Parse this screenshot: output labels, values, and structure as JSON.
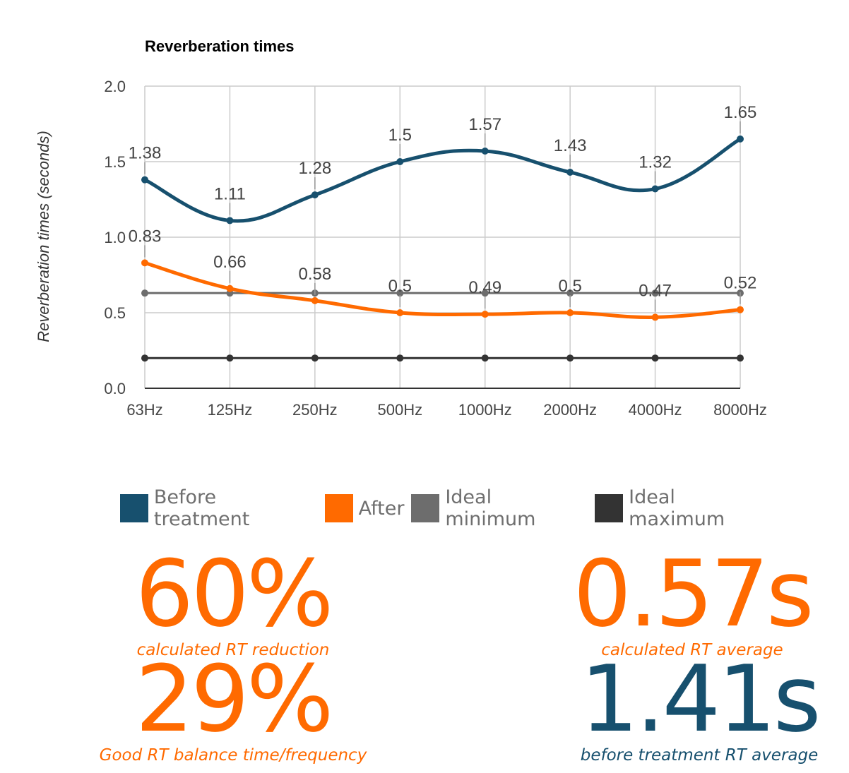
{
  "colors": {
    "before": "#17506e",
    "after": "#ff6a00",
    "ideal_min": "#6d6d6d",
    "ideal_max": "#333333",
    "grid": "#cccccc",
    "axis_text": "#444444"
  },
  "chart_data": {
    "type": "line",
    "title": "Reverberation times",
    "ylabel": "Reverberation times (seconds)",
    "xlabel": "",
    "ylim": [
      0,
      2
    ],
    "yticks": [
      "0.0",
      "0.5",
      "1.0",
      "1.5",
      "2.0"
    ],
    "grid": true,
    "smooth": true,
    "legend_position": "bottom",
    "categories": [
      "63Hz",
      "125Hz",
      "250Hz",
      "500Hz",
      "1000Hz",
      "2000Hz",
      "4000Hz",
      "8000Hz"
    ],
    "series": [
      {
        "name": "Before treatment",
        "values": [
          1.38,
          1.11,
          1.28,
          1.5,
          1.57,
          1.43,
          1.32,
          1.65
        ],
        "labels": [
          "1.38",
          "1.11",
          "1.28",
          "1.5",
          "1.57",
          "1.43",
          "1.32",
          "1.65"
        ]
      },
      {
        "name": "After",
        "values": [
          0.83,
          0.66,
          0.58,
          0.5,
          0.49,
          0.5,
          0.47,
          0.52
        ],
        "labels": [
          "0.83",
          "0.66",
          "0.58",
          "0.5",
          "0.49",
          "0.5",
          "0.47",
          "0.52"
        ]
      },
      {
        "name": "Ideal minimum",
        "values": [
          0.63,
          0.63,
          0.63,
          0.63,
          0.63,
          0.63,
          0.63,
          0.63
        ]
      },
      {
        "name": "Ideal maximum",
        "values": [
          0.2,
          0.2,
          0.2,
          0.2,
          0.2,
          0.2,
          0.2,
          0.2
        ]
      }
    ]
  },
  "legend": {
    "before": "Before treatment",
    "after": "After",
    "ideal_min": "Ideal minimum",
    "ideal_max": "Ideal maximum"
  },
  "stats": {
    "reduction": {
      "value": "60%",
      "caption": "calculated RT reduction"
    },
    "balance": {
      "value": "29%",
      "caption": "Good RT balance time/frequency"
    },
    "average": {
      "value": "0.57s",
      "caption": "calculated RT average"
    },
    "before_average": {
      "value": "1.41s",
      "caption": "before treatment RT average"
    }
  }
}
